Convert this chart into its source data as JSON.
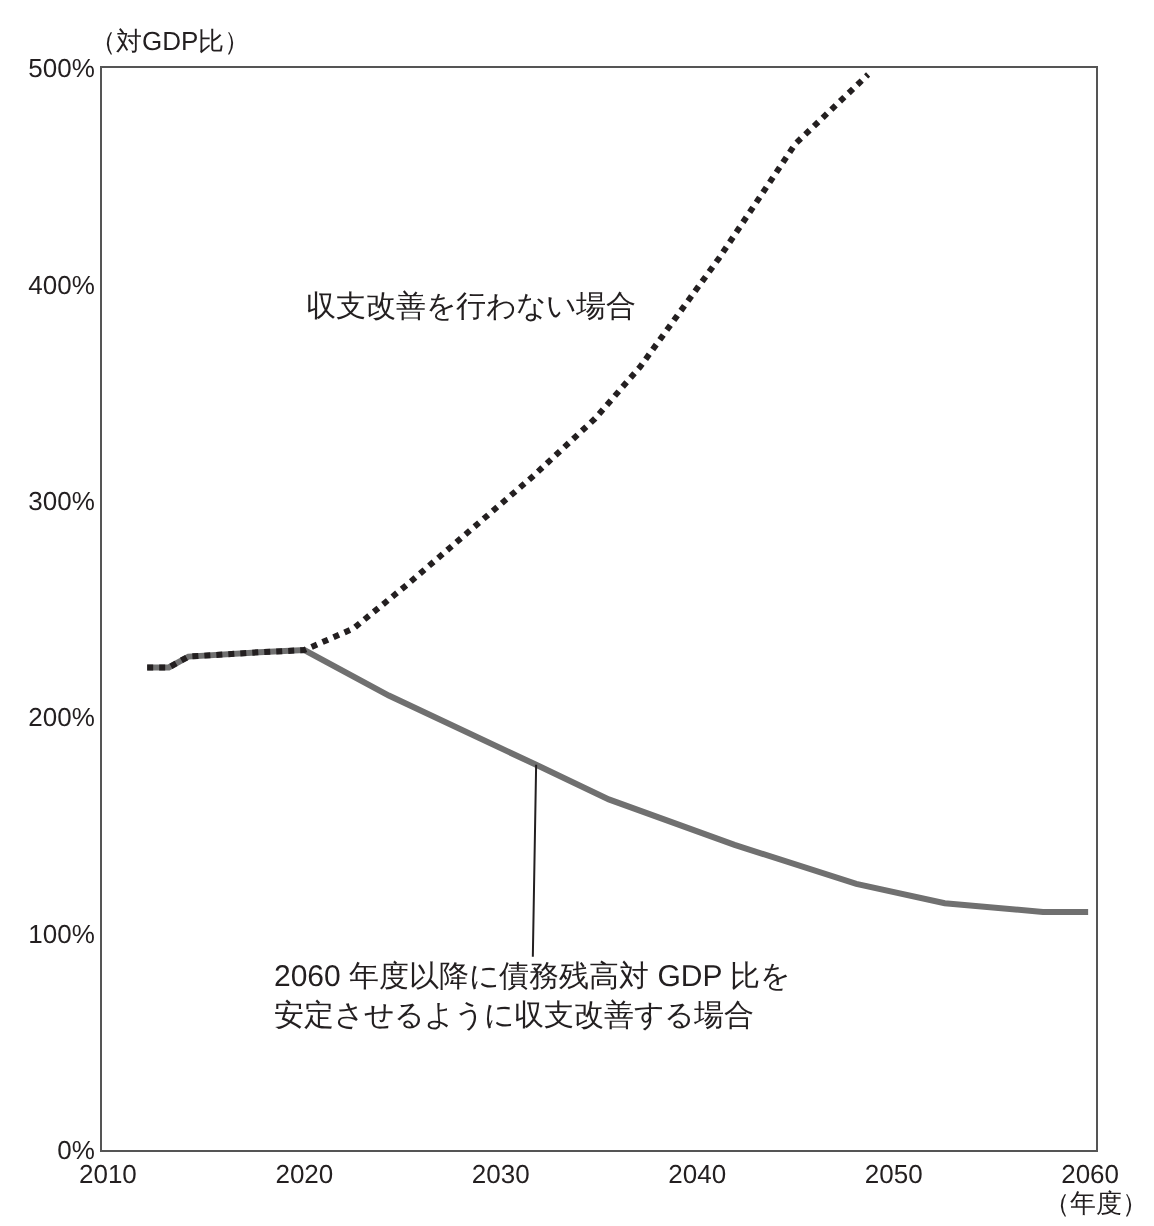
{
  "chart_data": {
    "type": "line",
    "ylabel": "（対GDP比）",
    "xlabel": "（年度）",
    "xlim": [
      2009.7,
      2060.3
    ],
    "xticks": [
      2010,
      2020,
      2030,
      2040,
      2050,
      2060
    ],
    "ylim": [
      0,
      500
    ],
    "yticks": [
      {
        "value": 0,
        "label": "0%"
      },
      {
        "value": 100,
        "label": "100%"
      },
      {
        "value": 200,
        "label": "200%"
      },
      {
        "value": 300,
        "label": "300%"
      },
      {
        "value": 400,
        "label": "400%"
      },
      {
        "value": 500,
        "label": "500%"
      }
    ],
    "legend": false,
    "marker": "none",
    "series": [
      {
        "name": "2060 年度以降に債務残高対 GDP 比を安定させるように収支改善する場合",
        "color": "#707070",
        "line_style": "solid",
        "x": [
          2012.0,
          2013.1,
          2014.1,
          2017.7,
          2020,
          2024.3,
          2031.8,
          2035.5,
          2041.9,
          2048.1,
          2052.6,
          2057.6,
          2059.9
        ],
        "values": [
          223,
          223,
          228,
          230,
          231,
          210,
          178,
          162,
          141,
          123,
          114,
          110,
          110
        ]
      },
      {
        "name": "収支改善を行わない場合",
        "color": "#231f20",
        "line_style": "dotted",
        "x": [
          2012.0,
          2013.1,
          2014.1,
          2017.7,
          2020,
          2022.5,
          2025.2,
          2028.4,
          2031.6,
          2034.8,
          2037.1,
          2041.1,
          2045,
          2048.7
        ],
        "values": [
          223,
          223,
          228,
          230,
          231,
          241,
          261,
          286,
          311,
          338,
          362,
          412,
          465,
          497
        ]
      }
    ]
  }
}
